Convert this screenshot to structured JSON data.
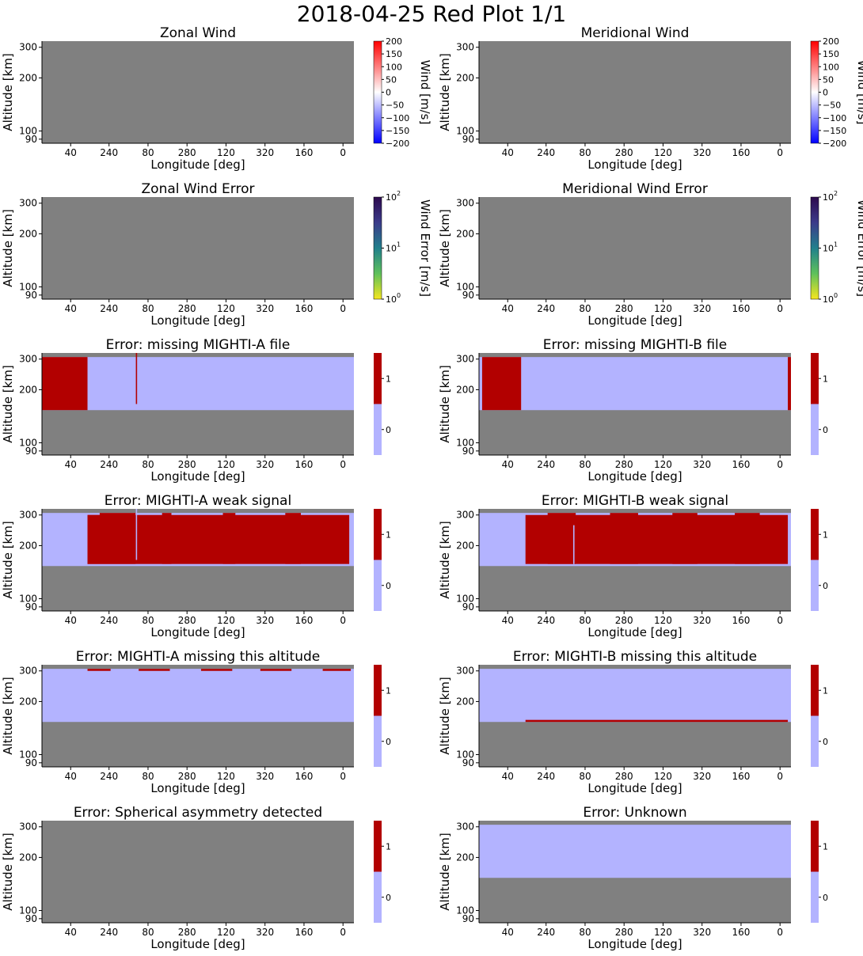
{
  "page": {
    "title": "2018-04-25 Red Plot 1/1"
  },
  "colors": {
    "no_data": "#808080",
    "flag_off": "#b3b3ff",
    "flag_on": "#b20000",
    "axis": "#000000"
  },
  "chart_data": [
    {
      "type": "heatmap",
      "title": "Zonal Wind",
      "xlabel": "Longitude [deg]",
      "ylabel": "Altitude [km]",
      "xticks": [
        "40",
        "240",
        "80",
        "280",
        "120",
        "320",
        "160",
        "0"
      ],
      "yticks": [
        "300",
        "200",
        "100",
        "90"
      ],
      "colorbar": {
        "kind": "diverging",
        "label": "Wind [m/s]",
        "ticks": [
          "200",
          "150",
          "100",
          "50",
          "0",
          "−50",
          "−100",
          "−150",
          "−200"
        ],
        "range": [
          -200,
          200
        ]
      },
      "regions": []
    },
    {
      "type": "heatmap",
      "title": "Meridional Wind",
      "xlabel": "Longitude [deg]",
      "ylabel": "Altitude [km]",
      "xticks": [
        "40",
        "240",
        "80",
        "280",
        "120",
        "320",
        "160",
        "0"
      ],
      "yticks": [
        "300",
        "200",
        "100",
        "90"
      ],
      "colorbar": {
        "kind": "diverging",
        "label": "Wind [m/s]",
        "ticks": [
          "200",
          "150",
          "100",
          "50",
          "0",
          "−50",
          "−100",
          "−150",
          "−200"
        ],
        "range": [
          -200,
          200
        ]
      },
      "regions": []
    },
    {
      "type": "heatmap",
      "title": "Zonal Wind Error",
      "xlabel": "Longitude [deg]",
      "ylabel": "Altitude [km]",
      "xticks": [
        "40",
        "240",
        "80",
        "280",
        "120",
        "320",
        "160",
        "0"
      ],
      "yticks": [
        "300",
        "200",
        "100",
        "90"
      ],
      "colorbar": {
        "kind": "log",
        "label": "Wind Error [m/s]",
        "ticks": [
          "10",
          "10",
          "10"
        ],
        "exponents": [
          "2",
          "1",
          "0"
        ],
        "range": [
          1,
          100
        ]
      },
      "regions": []
    },
    {
      "type": "heatmap",
      "title": "Meridional Wind Error",
      "xlabel": "Longitude [deg]",
      "ylabel": "Altitude [km]",
      "xticks": [
        "40",
        "240",
        "80",
        "280",
        "120",
        "320",
        "160",
        "0"
      ],
      "yticks": [
        "300",
        "200",
        "100",
        "90"
      ],
      "colorbar": {
        "kind": "log",
        "label": "Wind Error [m/s]",
        "ticks": [
          "10",
          "10",
          "10"
        ],
        "exponents": [
          "2",
          "1",
          "0"
        ],
        "range": [
          1,
          100
        ]
      },
      "regions": []
    },
    {
      "type": "heatmap",
      "title": "Error: missing MIGHTI-A file",
      "xlabel": "Longitude [deg]",
      "ylabel": "Altitude [km]",
      "xticks": [
        "40",
        "240",
        "80",
        "280",
        "120",
        "320",
        "160",
        "0"
      ],
      "yticks": [
        "300",
        "200",
        "100",
        "90"
      ],
      "colorbar": {
        "kind": "flag",
        "label": "",
        "ticks": [
          "1",
          "0"
        ]
      },
      "regions": [
        {
          "flag": 0,
          "x": [
            0,
            1
          ],
          "y": [
            0.04,
            0.56
          ]
        },
        {
          "flag": 1,
          "x": [
            0,
            0.146
          ],
          "y": [
            0.04,
            0.56
          ]
        },
        {
          "flag": 1,
          "x": [
            0.301,
            0.305
          ],
          "y": [
            0.0,
            0.5
          ]
        }
      ]
    },
    {
      "type": "heatmap",
      "title": "Error: missing MIGHTI-B file",
      "xlabel": "Longitude [deg]",
      "ylabel": "Altitude [km]",
      "xticks": [
        "40",
        "240",
        "80",
        "280",
        "120",
        "320",
        "160",
        "0"
      ],
      "yticks": [
        "300",
        "200",
        "100",
        "90"
      ],
      "colorbar": {
        "kind": "flag",
        "label": "",
        "ticks": [
          "1",
          "0"
        ]
      },
      "regions": [
        {
          "flag": 0,
          "x": [
            0,
            1
          ],
          "y": [
            0.04,
            0.56
          ]
        },
        {
          "flag": 1,
          "x": [
            0.01,
            0.135
          ],
          "y": [
            0.04,
            0.56
          ]
        },
        {
          "flag": 1,
          "x": [
            0.99,
            1.0
          ],
          "y": [
            0.04,
            0.56
          ]
        }
      ]
    },
    {
      "type": "heatmap",
      "title": "Error: MIGHTI-A weak signal",
      "xlabel": "Longitude [deg]",
      "ylabel": "Altitude [km]",
      "xticks": [
        "40",
        "240",
        "80",
        "280",
        "120",
        "320",
        "160",
        "0"
      ],
      "yticks": [
        "300",
        "200",
        "100",
        "90"
      ],
      "colorbar": {
        "kind": "flag",
        "label": "",
        "ticks": [
          "1",
          "0"
        ]
      },
      "regions": [
        {
          "flag": 0,
          "x": [
            0,
            1
          ],
          "y": [
            0.04,
            0.56
          ]
        },
        {
          "flag": 1,
          "x": [
            0.146,
            0.985
          ],
          "y": [
            0.06,
            0.54
          ]
        },
        {
          "flag": 1,
          "x": [
            0.146,
            0.185
          ],
          "y": [
            0.06,
            0.54
          ]
        },
        {
          "flag": 1,
          "x": [
            0.185,
            0.3
          ],
          "y": [
            0.04,
            0.54
          ]
        },
        {
          "flag": 1,
          "x": [
            0.385,
            0.415
          ],
          "y": [
            0.04,
            0.54
          ]
        },
        {
          "flag": 1,
          "x": [
            0.58,
            0.62
          ],
          "y": [
            0.04,
            0.54
          ]
        },
        {
          "flag": 1,
          "x": [
            0.78,
            0.83
          ],
          "y": [
            0.04,
            0.54
          ]
        },
        {
          "flag": 0,
          "x": [
            0.301,
            0.305
          ],
          "y": [
            0.0,
            0.5
          ]
        }
      ]
    },
    {
      "type": "heatmap",
      "title": "Error: MIGHTI-B weak signal",
      "xlabel": "Longitude [deg]",
      "ylabel": "Altitude [km]",
      "xticks": [
        "40",
        "240",
        "80",
        "280",
        "120",
        "320",
        "160",
        "0"
      ],
      "yticks": [
        "300",
        "200",
        "100",
        "90"
      ],
      "colorbar": {
        "kind": "flag",
        "label": "",
        "ticks": [
          "1",
          "0"
        ]
      },
      "regions": [
        {
          "flag": 0,
          "x": [
            0,
            1
          ],
          "y": [
            0.04,
            0.56
          ]
        },
        {
          "flag": 1,
          "x": [
            0.149,
            0.99
          ],
          "y": [
            0.06,
            0.54
          ]
        },
        {
          "flag": 1,
          "x": [
            0.22,
            0.31
          ],
          "y": [
            0.04,
            0.54
          ]
        },
        {
          "flag": 1,
          "x": [
            0.42,
            0.51
          ],
          "y": [
            0.04,
            0.54
          ]
        },
        {
          "flag": 1,
          "x": [
            0.62,
            0.7
          ],
          "y": [
            0.04,
            0.54
          ]
        },
        {
          "flag": 1,
          "x": [
            0.82,
            0.9
          ],
          "y": [
            0.04,
            0.54
          ]
        },
        {
          "flag": 0,
          "x": [
            0.302,
            0.306
          ],
          "y": [
            0.16,
            0.54
          ]
        }
      ]
    },
    {
      "type": "heatmap",
      "title": "Error: MIGHTI-A missing this altitude",
      "xlabel": "Longitude [deg]",
      "ylabel": "Altitude [km]",
      "xticks": [
        "40",
        "240",
        "80",
        "280",
        "120",
        "320",
        "160",
        "0"
      ],
      "yticks": [
        "300",
        "200",
        "100",
        "90"
      ],
      "colorbar": {
        "kind": "flag",
        "label": "",
        "ticks": [
          "1",
          "0"
        ]
      },
      "regions": [
        {
          "flag": 0,
          "x": [
            0,
            1
          ],
          "y": [
            0.04,
            0.56
          ]
        },
        {
          "flag": 1,
          "x": [
            0.146,
            0.22
          ],
          "y": [
            0.04,
            0.06
          ]
        },
        {
          "flag": 1,
          "x": [
            0.31,
            0.41
          ],
          "y": [
            0.04,
            0.06
          ]
        },
        {
          "flag": 1,
          "x": [
            0.51,
            0.61
          ],
          "y": [
            0.04,
            0.06
          ]
        },
        {
          "flag": 1,
          "x": [
            0.7,
            0.8
          ],
          "y": [
            0.04,
            0.06
          ]
        },
        {
          "flag": 1,
          "x": [
            0.9,
            0.99
          ],
          "y": [
            0.04,
            0.06
          ]
        }
      ]
    },
    {
      "type": "heatmap",
      "title": "Error: MIGHTI-B missing this altitude",
      "xlabel": "Longitude [deg]",
      "ylabel": "Altitude [km]",
      "xticks": [
        "40",
        "240",
        "80",
        "280",
        "120",
        "320",
        "160",
        "0"
      ],
      "yticks": [
        "300",
        "200",
        "100",
        "90"
      ],
      "colorbar": {
        "kind": "flag",
        "label": "",
        "ticks": [
          "1",
          "0"
        ]
      },
      "regions": [
        {
          "flag": 0,
          "x": [
            0,
            1
          ],
          "y": [
            0.04,
            0.56
          ]
        },
        {
          "flag": 1,
          "x": [
            0.149,
            0.99
          ],
          "y": [
            0.54,
            0.56
          ]
        }
      ]
    },
    {
      "type": "heatmap",
      "title": "Error: Spherical asymmetry detected",
      "xlabel": "Longitude [deg]",
      "ylabel": "Altitude [km]",
      "xticks": [
        "40",
        "240",
        "80",
        "280",
        "120",
        "320",
        "160",
        "0"
      ],
      "yticks": [
        "300",
        "200",
        "100",
        "90"
      ],
      "colorbar": {
        "kind": "flag",
        "label": "",
        "ticks": [
          "1",
          "0"
        ]
      },
      "regions": []
    },
    {
      "type": "heatmap",
      "title": "Error: Unknown",
      "xlabel": "Longitude [deg]",
      "ylabel": "Altitude [km]",
      "xticks": [
        "40",
        "240",
        "80",
        "280",
        "120",
        "320",
        "160",
        "0"
      ],
      "yticks": [
        "300",
        "200",
        "100",
        "90"
      ],
      "colorbar": {
        "kind": "flag",
        "label": "",
        "ticks": [
          "1",
          "0"
        ]
      },
      "regions": [
        {
          "flag": 0,
          "x": [
            0,
            1
          ],
          "y": [
            0.04,
            0.56
          ]
        }
      ]
    }
  ]
}
